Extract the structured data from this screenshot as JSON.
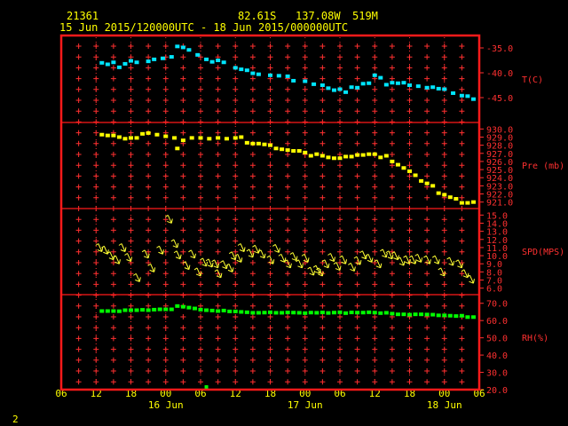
{
  "header": {
    "station": "21361",
    "lat": "82.61S",
    "lon": "137.08W",
    "elev": "519M",
    "range": "15 Jun 2015/120000UTC - 18 Jun 2015/000000UTC"
  },
  "footer": {
    "page_number": "2"
  },
  "colors": {
    "frame": "#ff1a1a",
    "grid": "#ff3030",
    "text": "#ffff00",
    "temp": "#00e5ff",
    "pressure": "#ffff00",
    "wind": "#ffff33",
    "rh": "#00ff00"
  },
  "chart_data": {
    "type": "scatter",
    "x_ticks": [
      "06",
      "12",
      "18",
      "00",
      "06",
      "12",
      "18",
      "00",
      "06",
      "12",
      "18",
      "00",
      "06"
    ],
    "day_labels": [
      "16 Jun",
      "17 Jun",
      "18 Jun"
    ],
    "panels": [
      {
        "name": "T(C)",
        "ticks": [
          "-35.0",
          "-40.0",
          "-45.0"
        ],
        "tick_values": [
          -35,
          -40,
          -45
        ],
        "ylim": [
          -50,
          -32.5
        ],
        "points": [
          [
            13.0,
            -38.0
          ],
          [
            14.0,
            -38.3
          ],
          [
            15.0,
            -37.9
          ],
          [
            16.0,
            -38.9
          ],
          [
            17.0,
            -38.2
          ],
          [
            18.0,
            -37.6
          ],
          [
            19.0,
            -37.9
          ],
          [
            21.0,
            -37.7
          ],
          [
            22.0,
            -37.3
          ],
          [
            23.5,
            -37.1
          ],
          [
            25.0,
            -36.8
          ],
          [
            26.0,
            -34.7
          ],
          [
            27.0,
            -34.9
          ],
          [
            28.0,
            -35.4
          ],
          [
            29.5,
            -36.4
          ],
          [
            31.0,
            -37.3
          ],
          [
            32.0,
            -37.8
          ],
          [
            33.0,
            -37.5
          ],
          [
            34.0,
            -37.9
          ],
          [
            36.0,
            -39.0
          ],
          [
            37.0,
            -39.3
          ],
          [
            38.0,
            -39.5
          ],
          [
            39.0,
            -40.1
          ],
          [
            40.0,
            -40.3
          ],
          [
            42.0,
            -40.5
          ],
          [
            43.5,
            -40.6
          ],
          [
            45.0,
            -40.7
          ],
          [
            46.0,
            -41.6
          ],
          [
            48.0,
            -41.7
          ],
          [
            49.5,
            -42.3
          ],
          [
            51.0,
            -42.5
          ],
          [
            52.0,
            -43.1
          ],
          [
            53.0,
            -43.5
          ],
          [
            54.0,
            -43.3
          ],
          [
            55.0,
            -43.9
          ],
          [
            56.0,
            -42.9
          ],
          [
            57.0,
            -43.0
          ],
          [
            58.0,
            -42.2
          ],
          [
            59.0,
            -42.1
          ],
          [
            60.0,
            -40.5
          ],
          [
            61.0,
            -41.0
          ],
          [
            62.0,
            -42.4
          ],
          [
            63.0,
            -42.0
          ],
          [
            64.0,
            -42.1
          ],
          [
            65.0,
            -42.0
          ],
          [
            66.0,
            -42.5
          ],
          [
            67.5,
            -42.7
          ],
          [
            69.0,
            -43.0
          ],
          [
            70.0,
            -42.9
          ],
          [
            71.0,
            -43.2
          ],
          [
            72.0,
            -43.3
          ],
          [
            73.5,
            -44.1
          ],
          [
            75.0,
            -44.6
          ],
          [
            76.0,
            -44.7
          ],
          [
            77.0,
            -45.3
          ]
        ]
      },
      {
        "name": "Pre (mb)",
        "ticks": [
          "930.0",
          "929.0",
          "928.0",
          "927.0",
          "926.0",
          "925.0",
          "924.0",
          "923.0",
          "922.0",
          "921.0"
        ],
        "tick_values": [
          930,
          929,
          928,
          927,
          926,
          925,
          924,
          923,
          922,
          921
        ],
        "ylim": [
          920.2,
          930.8
        ],
        "points": [
          [
            13.0,
            929.3
          ],
          [
            14.0,
            929.2
          ],
          [
            15.0,
            929.2
          ],
          [
            16.0,
            929.0
          ],
          [
            17.0,
            928.8
          ],
          [
            18.0,
            928.9
          ],
          [
            19.0,
            928.9
          ],
          [
            20.0,
            929.4
          ],
          [
            21.0,
            929.5
          ],
          [
            22.5,
            929.3
          ],
          [
            24.0,
            929.1
          ],
          [
            25.5,
            928.9
          ],
          [
            26.0,
            927.6
          ],
          [
            27.0,
            928.6
          ],
          [
            28.5,
            928.9
          ],
          [
            30.0,
            928.9
          ],
          [
            31.5,
            928.8
          ],
          [
            33.0,
            928.9
          ],
          [
            34.5,
            928.8
          ],
          [
            36.0,
            928.9
          ],
          [
            37.0,
            929.0
          ],
          [
            38.0,
            928.3
          ],
          [
            39.0,
            928.2
          ],
          [
            40.0,
            928.2
          ],
          [
            41.0,
            928.1
          ],
          [
            42.0,
            928.0
          ],
          [
            43.0,
            927.6
          ],
          [
            44.0,
            927.5
          ],
          [
            45.0,
            927.4
          ],
          [
            46.0,
            927.3
          ],
          [
            47.0,
            927.3
          ],
          [
            48.0,
            927.1
          ],
          [
            49.0,
            926.7
          ],
          [
            50.0,
            926.9
          ],
          [
            51.0,
            926.7
          ],
          [
            52.0,
            926.5
          ],
          [
            53.0,
            926.4
          ],
          [
            54.0,
            926.4
          ],
          [
            55.0,
            926.6
          ],
          [
            56.0,
            926.6
          ],
          [
            57.0,
            926.8
          ],
          [
            58.0,
            926.8
          ],
          [
            59.0,
            926.9
          ],
          [
            60.0,
            926.9
          ],
          [
            61.0,
            926.5
          ],
          [
            62.0,
            926.7
          ],
          [
            63.0,
            926.0
          ],
          [
            64.0,
            925.6
          ],
          [
            65.0,
            925.2
          ],
          [
            66.0,
            924.8
          ],
          [
            67.0,
            924.3
          ],
          [
            68.0,
            923.6
          ],
          [
            69.0,
            923.3
          ],
          [
            70.0,
            923.0
          ],
          [
            71.0,
            922.1
          ],
          [
            72.0,
            921.9
          ],
          [
            73.0,
            921.6
          ],
          [
            74.0,
            921.4
          ],
          [
            75.0,
            920.9
          ],
          [
            76.0,
            920.9
          ],
          [
            77.0,
            921.0
          ]
        ]
      },
      {
        "name": "SPD(MPS)",
        "ticks": [
          "15.0",
          "14.0",
          "13.0",
          "12.0",
          "11.0",
          "10.0",
          "9.0",
          "8.0",
          "7.0",
          "6.0"
        ],
        "tick_values": [
          15,
          14,
          13,
          12,
          11,
          10,
          9,
          8,
          7,
          6
        ],
        "ylim": [
          5.2,
          15.8
        ],
        "points": [
          [
            13.0,
            10.5
          ],
          [
            14.0,
            10.2
          ],
          [
            15.0,
            9.5
          ],
          [
            16.0,
            9.0
          ],
          [
            17.0,
            10.5
          ],
          [
            18.0,
            9.3
          ],
          [
            19.5,
            6.8
          ],
          [
            21.0,
            9.7
          ],
          [
            22.0,
            8.0
          ],
          [
            23.5,
            10.2
          ],
          [
            25.0,
            14.0
          ],
          [
            26.0,
            11.0
          ],
          [
            26.5,
            9.6
          ],
          [
            28.0,
            8.3
          ],
          [
            29.0,
            9.7
          ],
          [
            30.0,
            7.5
          ],
          [
            31.0,
            8.7
          ],
          [
            32.0,
            8.6
          ],
          [
            33.0,
            8.5
          ],
          [
            33.5,
            7.3
          ],
          [
            34.5,
            8.4
          ],
          [
            35.5,
            8.0
          ],
          [
            36.0,
            9.5
          ],
          [
            37.0,
            9.2
          ],
          [
            37.5,
            10.5
          ],
          [
            39.0,
            9.8
          ],
          [
            40.0,
            10.3
          ],
          [
            41.0,
            9.7
          ],
          [
            42.5,
            9.0
          ],
          [
            43.5,
            10.4
          ],
          [
            44.5,
            9.2
          ],
          [
            45.5,
            8.5
          ],
          [
            46.5,
            9.4
          ],
          [
            47.5,
            8.5
          ],
          [
            48.5,
            9.2
          ],
          [
            49.5,
            7.6
          ],
          [
            50.5,
            7.8
          ],
          [
            51.0,
            7.5
          ],
          [
            52.0,
            8.5
          ],
          [
            53.0,
            9.3
          ],
          [
            54.0,
            8.2
          ],
          [
            55.0,
            9.0
          ],
          [
            56.5,
            8.1
          ],
          [
            57.5,
            8.9
          ],
          [
            58.5,
            9.6
          ],
          [
            59.5,
            9.2
          ],
          [
            61.0,
            8.5
          ],
          [
            62.0,
            9.8
          ],
          [
            63.0,
            9.6
          ],
          [
            64.0,
            9.5
          ],
          [
            65.0,
            8.8
          ],
          [
            66.0,
            9.0
          ],
          [
            67.0,
            9.0
          ],
          [
            68.0,
            9.2
          ],
          [
            69.5,
            9.0
          ],
          [
            71.0,
            9.0
          ],
          [
            72.0,
            7.5
          ],
          [
            73.5,
            8.8
          ],
          [
            75.0,
            8.5
          ],
          [
            76.0,
            7.3
          ],
          [
            77.0,
            6.6
          ]
        ]
      },
      {
        "name": "RH(%)",
        "ticks": [
          "70.0",
          "60.0",
          "50.0",
          "40.0",
          "30.0",
          "20.0"
        ],
        "tick_values": [
          70,
          60,
          50,
          40,
          30,
          20
        ],
        "ylim": [
          20,
          75
        ],
        "points": [
          [
            13.0,
            65.5
          ],
          [
            14.0,
            65.5
          ],
          [
            15.0,
            65.5
          ],
          [
            16.0,
            65.4
          ],
          [
            17.0,
            66.0
          ],
          [
            18.0,
            66.0
          ],
          [
            19.0,
            66.0
          ],
          [
            20.0,
            66.2
          ],
          [
            21.0,
            66.0
          ],
          [
            22.0,
            66.3
          ],
          [
            23.0,
            66.5
          ],
          [
            24.0,
            66.5
          ],
          [
            25.0,
            66.5
          ],
          [
            26.0,
            68.4
          ],
          [
            27.0,
            68.0
          ],
          [
            28.0,
            67.5
          ],
          [
            29.0,
            67.0
          ],
          [
            30.0,
            66.3
          ],
          [
            31.0,
            66.0
          ],
          [
            32.0,
            65.8
          ],
          [
            33.0,
            65.5
          ],
          [
            34.0,
            65.8
          ],
          [
            35.0,
            65.3
          ],
          [
            36.0,
            65.3
          ],
          [
            37.0,
            65.0
          ],
          [
            38.0,
            64.8
          ],
          [
            39.0,
            64.5
          ],
          [
            40.0,
            64.5
          ],
          [
            41.0,
            64.6
          ],
          [
            42.0,
            64.8
          ],
          [
            43.0,
            64.5
          ],
          [
            44.0,
            64.5
          ],
          [
            45.0,
            64.7
          ],
          [
            46.0,
            64.6
          ],
          [
            47.0,
            64.5
          ],
          [
            48.0,
            64.3
          ],
          [
            49.0,
            64.6
          ],
          [
            50.0,
            64.5
          ],
          [
            51.0,
            64.7
          ],
          [
            52.0,
            64.4
          ],
          [
            53.0,
            64.6
          ],
          [
            54.0,
            64.8
          ],
          [
            55.0,
            64.3
          ],
          [
            56.0,
            64.7
          ],
          [
            57.0,
            64.6
          ],
          [
            58.0,
            64.6
          ],
          [
            59.0,
            64.8
          ],
          [
            60.0,
            64.6
          ],
          [
            61.0,
            64.3
          ],
          [
            62.0,
            64.5
          ],
          [
            63.0,
            64.0
          ],
          [
            64.0,
            63.6
          ],
          [
            65.0,
            63.6
          ],
          [
            66.0,
            63.4
          ],
          [
            67.0,
            63.6
          ],
          [
            68.0,
            63.6
          ],
          [
            69.0,
            63.5
          ],
          [
            70.0,
            63.4
          ],
          [
            71.0,
            63.0
          ],
          [
            72.0,
            63.0
          ],
          [
            73.0,
            62.8
          ],
          [
            74.0,
            62.6
          ],
          [
            75.0,
            62.8
          ],
          [
            76.0,
            62.0
          ],
          [
            77.0,
            62.0
          ]
        ],
        "outliers": [
          [
            31.0,
            21.5
          ]
        ]
      }
    ]
  }
}
